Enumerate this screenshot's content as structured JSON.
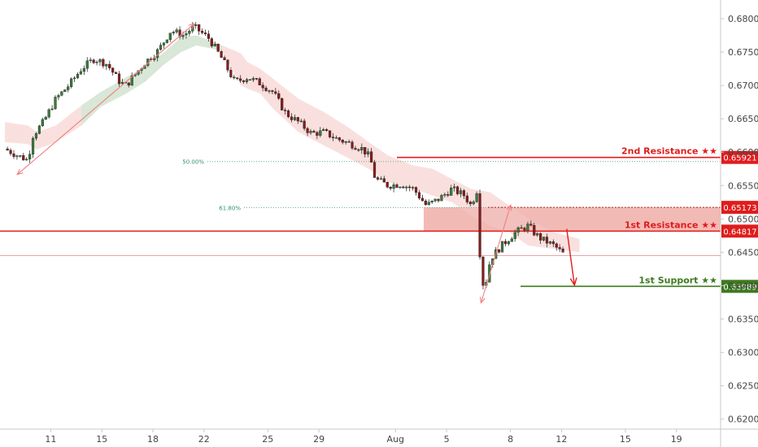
{
  "chart_data": {
    "type": "candlestick",
    "y_ticks": [
      "0.68000",
      "0.67500",
      "0.67000",
      "0.66500",
      "0.66000",
      "0.65500",
      "0.65000",
      "0.64500",
      "0.64000",
      "0.63500",
      "0.63000",
      "0.62500",
      "0.62000"
    ],
    "y_tick_values": [
      0.68,
      0.675,
      0.67,
      0.665,
      0.66,
      0.655,
      0.65,
      0.645,
      0.64,
      0.635,
      0.63,
      0.625,
      0.62
    ],
    "ylim": [
      0.6185,
      0.6828
    ],
    "x_ticks": [
      {
        "label": "11",
        "index": 2
      },
      {
        "label": "15",
        "index": 6
      },
      {
        "label": "18",
        "index": 10
      },
      {
        "label": "22",
        "index": 14
      },
      {
        "label": "25",
        "index": 19
      },
      {
        "label": "29",
        "index": 23
      },
      {
        "label": "Aug",
        "index": 29
      },
      {
        "label": "5",
        "index": 33
      },
      {
        "label": "8",
        "index": 38
      },
      {
        "label": "12",
        "index": 42
      },
      {
        "label": "15",
        "index": 47
      },
      {
        "label": "19",
        "index": 51
      }
    ],
    "x_range": [
      0,
      52
    ],
    "levels": [
      {
        "name": "2nd Resistance ★★",
        "value": 0.65921,
        "tag": "0.65921",
        "color": "#e01c1c",
        "style": "solid"
      },
      {
        "name": "",
        "value": 0.65173,
        "tag": "0.65173",
        "color": "#e01c1c",
        "style": "dotted"
      },
      {
        "name": "1st Resistance ★★",
        "value": 0.64817,
        "tag": "0.64817",
        "color": "#e01c1c",
        "style": "solid"
      },
      {
        "name": "1st Support ★★",
        "value": 0.63989,
        "tag": "0.63989",
        "color": "#3d7a1f",
        "style": "solid"
      }
    ],
    "fib_levels": [
      {
        "label": "50.00%",
        "value": 0.6586
      },
      {
        "label": "61.80%",
        "value": 0.6517
      }
    ],
    "price_line": 0.6445,
    "close_path": [
      [
        0,
        0.6605
      ],
      [
        1.0,
        0.6595
      ],
      [
        1.8,
        0.6588
      ],
      [
        2.2,
        0.6625
      ],
      [
        3,
        0.6645
      ],
      [
        4,
        0.668
      ],
      [
        5,
        0.67
      ],
      [
        6,
        0.6725
      ],
      [
        7,
        0.674
      ],
      [
        8,
        0.6732
      ],
      [
        9,
        0.6705
      ],
      [
        9.5,
        0.67
      ],
      [
        10,
        0.6712
      ],
      [
        11,
        0.6735
      ],
      [
        12,
        0.6752
      ],
      [
        13,
        0.6782
      ],
      [
        14,
        0.6775
      ],
      [
        14.8,
        0.6788
      ],
      [
        16,
        0.677
      ],
      [
        17,
        0.674
      ],
      [
        18,
        0.6705
      ],
      [
        19,
        0.6712
      ],
      [
        20,
        0.6703
      ],
      [
        21,
        0.669
      ],
      [
        22,
        0.6658
      ],
      [
        23,
        0.6645
      ],
      [
        24,
        0.6628
      ],
      [
        25,
        0.663
      ],
      [
        26,
        0.662
      ],
      [
        27,
        0.6613
      ],
      [
        28,
        0.6605
      ],
      [
        28.6,
        0.6592
      ],
      [
        29,
        0.656
      ],
      [
        30,
        0.655
      ],
      [
        31,
        0.6552
      ],
      [
        32,
        0.6545
      ],
      [
        32.6,
        0.653
      ],
      [
        33,
        0.652
      ],
      [
        34,
        0.653
      ],
      [
        35,
        0.6545
      ],
      [
        36,
        0.6535
      ],
      [
        36.5,
        0.652
      ],
      [
        37,
        0.6545
      ],
      [
        37.3,
        0.64
      ],
      [
        37.8,
        0.641
      ],
      [
        38,
        0.644
      ],
      [
        39,
        0.6462
      ],
      [
        40,
        0.648
      ],
      [
        41,
        0.649
      ],
      [
        41.5,
        0.6478
      ],
      [
        42,
        0.647
      ],
      [
        43,
        0.646
      ],
      [
        43.7,
        0.6448
      ]
    ],
    "cloud": [
      [
        0,
        0.6645,
        0.6615
      ],
      [
        1.8,
        0.664,
        0.6612
      ],
      [
        2.5,
        0.663,
        0.6604
      ],
      [
        4,
        0.664,
        0.6615
      ],
      [
        6,
        0.667,
        0.664
      ],
      [
        7.5,
        0.669,
        0.6668
      ],
      [
        9.5,
        0.6712,
        0.6688
      ],
      [
        11,
        0.6728,
        0.6706
      ],
      [
        12.5,
        0.675,
        0.6732
      ],
      [
        13.8,
        0.6772,
        0.675
      ],
      [
        15,
        0.6775,
        0.676
      ],
      [
        17,
        0.676,
        0.6752
      ],
      [
        18.5,
        0.6748,
        0.67
      ],
      [
        19,
        0.6735,
        0.6695
      ],
      [
        20,
        0.6725,
        0.6688
      ],
      [
        21,
        0.671,
        0.6665
      ],
      [
        23,
        0.668,
        0.663
      ],
      [
        25,
        0.666,
        0.661
      ],
      [
        27,
        0.6636,
        0.659
      ],
      [
        28.5,
        0.6615,
        0.6575
      ],
      [
        30,
        0.6595,
        0.6555
      ],
      [
        32,
        0.658,
        0.6545
      ],
      [
        33.5,
        0.6575,
        0.6535
      ],
      [
        35,
        0.656,
        0.6525
      ],
      [
        36.5,
        0.6545,
        0.6505
      ],
      [
        38,
        0.654,
        0.649
      ],
      [
        39.5,
        0.652,
        0.648
      ],
      [
        41,
        0.65,
        0.646
      ],
      [
        43,
        0.648,
        0.6455
      ],
      [
        45,
        0.647,
        0.645
      ]
    ],
    "support_zone": {
      "x0": 32.8,
      "x1": 52,
      "y0": 0.64817,
      "y1": 0.65173
    },
    "arrows": [
      {
        "x1": 1.0,
        "y1": 0.6567,
        "x2": 14.8,
        "y2": 0.6792,
        "color": "#f08080"
      },
      {
        "x1": 37.3,
        "y1": 0.6375,
        "x2": 39.6,
        "y2": 0.652,
        "color": "#f08080"
      },
      {
        "x1": 44.0,
        "y1": 0.6485,
        "x2": 44.6,
        "y2": 0.6402,
        "color": "#e01c1c"
      }
    ]
  }
}
